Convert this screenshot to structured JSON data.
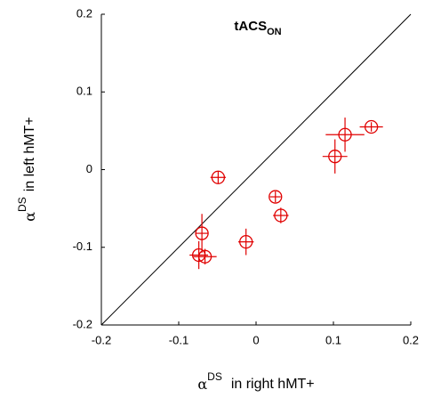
{
  "chart_data": {
    "type": "scatter",
    "title": "tACS",
    "title_subscript": "ON",
    "x_label": {
      "symbol": "α",
      "superscript": "DS",
      "text": "in right hMT+"
    },
    "y_label": {
      "symbol": "α",
      "superscript": "DS",
      "text": "in left hMT+"
    },
    "xlim": [
      -0.2,
      0.2
    ],
    "ylim": [
      -0.2,
      0.2
    ],
    "xticks": [
      -0.2,
      -0.1,
      0,
      0.1,
      0.2
    ],
    "yticks": [
      -0.2,
      -0.1,
      0,
      0.1,
      0.2
    ],
    "series": [
      {
        "color": "#e00000",
        "x": [
          -0.049,
          0.149,
          0.115,
          0.102,
          0.025,
          0.032,
          -0.013,
          -0.07,
          -0.074,
          -0.066
        ],
        "values": [
          -0.01,
          0.055,
          0.045,
          0.017,
          -0.035,
          -0.059,
          -0.093,
          -0.082,
          -0.11,
          -0.112
        ],
        "xerr": [
          0.01,
          0.015,
          0.025,
          0.016,
          0.007,
          0.01,
          0.01,
          0.008,
          0.012,
          0.015
        ],
        "yerr": [
          0.008,
          0.006,
          0.022,
          0.022,
          0.007,
          0.01,
          0.017,
          0.025,
          0.018,
          0.01
        ]
      }
    ],
    "identity_line": true
  }
}
